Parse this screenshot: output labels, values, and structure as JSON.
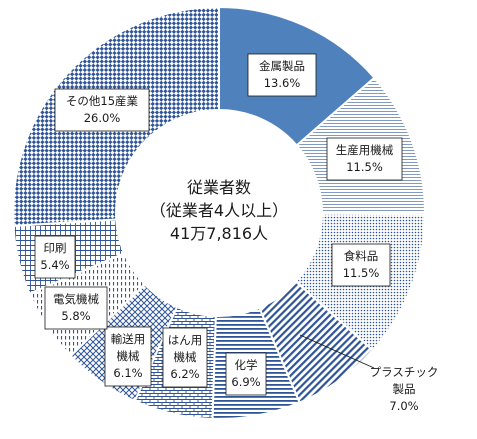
{
  "chart_data": {
    "type": "donut",
    "title": "",
    "center_text": [
      "従業者数",
      "（従業者4人以上）",
      "41万7,816人"
    ],
    "categories": [
      "金属製品",
      "生産用機械",
      "食料品",
      "プラスチック製品",
      "化学",
      "はん用機械",
      "輸送用機械",
      "電気機械",
      "印刷",
      "その他15産業"
    ],
    "label_lines": [
      [
        "金属製品",
        "13.6%"
      ],
      [
        "生産用機械",
        "11.5%"
      ],
      [
        "食料品",
        "11.5%"
      ],
      [
        "プラスチック",
        "製品",
        "7.0%"
      ],
      [
        "化学",
        "6.9%"
      ],
      [
        "はん用",
        "機械",
        "6.2%"
      ],
      [
        "輸送用",
        "機械",
        "6.1%"
      ],
      [
        "電気機械",
        "5.8%"
      ],
      [
        "印刷",
        "5.4%"
      ],
      [
        "その他15産業",
        "26.0%"
      ]
    ],
    "values": [
      13.6,
      11.5,
      11.5,
      7.0,
      6.9,
      6.2,
      6.1,
      5.8,
      5.4,
      26.0
    ],
    "unit": "%",
    "colors": {
      "metal": "#4f81bd",
      "pattern": "#2f5597",
      "background": "#ffffff"
    },
    "legend": "none"
  }
}
